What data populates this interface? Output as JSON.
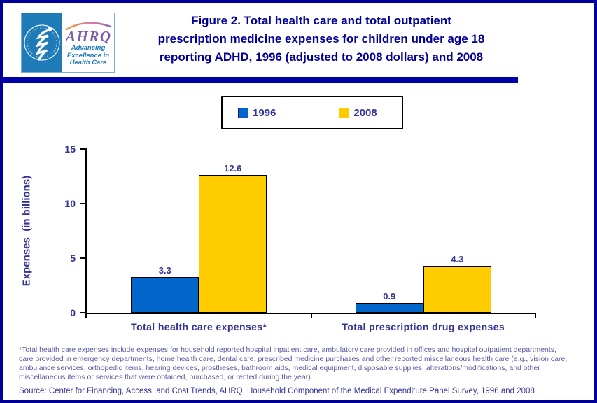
{
  "header": {
    "logo": {
      "org": "AHRQ",
      "tagline": "Advancing\nExcellence in\nHealth Care"
    },
    "title_lines": [
      "Figure 2. Total health care and total outpatient",
      "prescription medicine expenses for children under age 18",
      "reporting ADHD, 1996 (adjusted to 2008 dollars) and 2008"
    ]
  },
  "chart_data": {
    "type": "bar",
    "title": "Figure 2. Total health care and total outpatient prescription medicine expenses for children under age 18 reporting ADHD, 1996 (adjusted to 2008 dollars) and 2008",
    "categories": [
      "Total health care expenses*",
      "Total prescription drug expenses"
    ],
    "series": [
      {
        "name": "1996",
        "color": "#0066CC",
        "values": [
          3.3,
          0.9
        ]
      },
      {
        "name": "2008",
        "color": "#FFCC00",
        "values": [
          12.6,
          4.3
        ]
      }
    ],
    "ylabel": "Expenses  (in billions)",
    "xlabel": "",
    "ylim": [
      0,
      15
    ],
    "yticks": [
      0,
      5,
      10,
      15
    ],
    "grid": false,
    "legend_position": "top-center",
    "data_labels": true
  },
  "footnote": {
    "lines": [
      "*Total health care expenses include expenses for household reported hospital inpatient care, ambulatory care provided in offices and hospital outpatient departments,",
      "care provided in emergency departments, home health care, dental care, prescribed medicine purchases and other reported miscellaneous health care (e.g., vision care,",
      "ambulance services, orthopedic items, hearing devices, prostheses, bathroom aids, medical equipment, disposable supplies, alterations/modifications, and other",
      "miscellaneous items or services that were obtained, purchased, or rented during the year)."
    ]
  },
  "source": "Source: Center for Financing, Access, and Cost Trends, AHRQ, Household Component of the Medical Expenditure Panel Survey, 1996 and 2008",
  "colors": {
    "accent_navy": "#000099",
    "divider": "#0000A8",
    "chart_text": "#333399",
    "footnote_text": "#5A5AA5",
    "bar_1996": "#0066CC",
    "bar_2008": "#FFCC00",
    "logo_blue": "#1F7AB8",
    "logo_purple": "#7A5CA8"
  }
}
